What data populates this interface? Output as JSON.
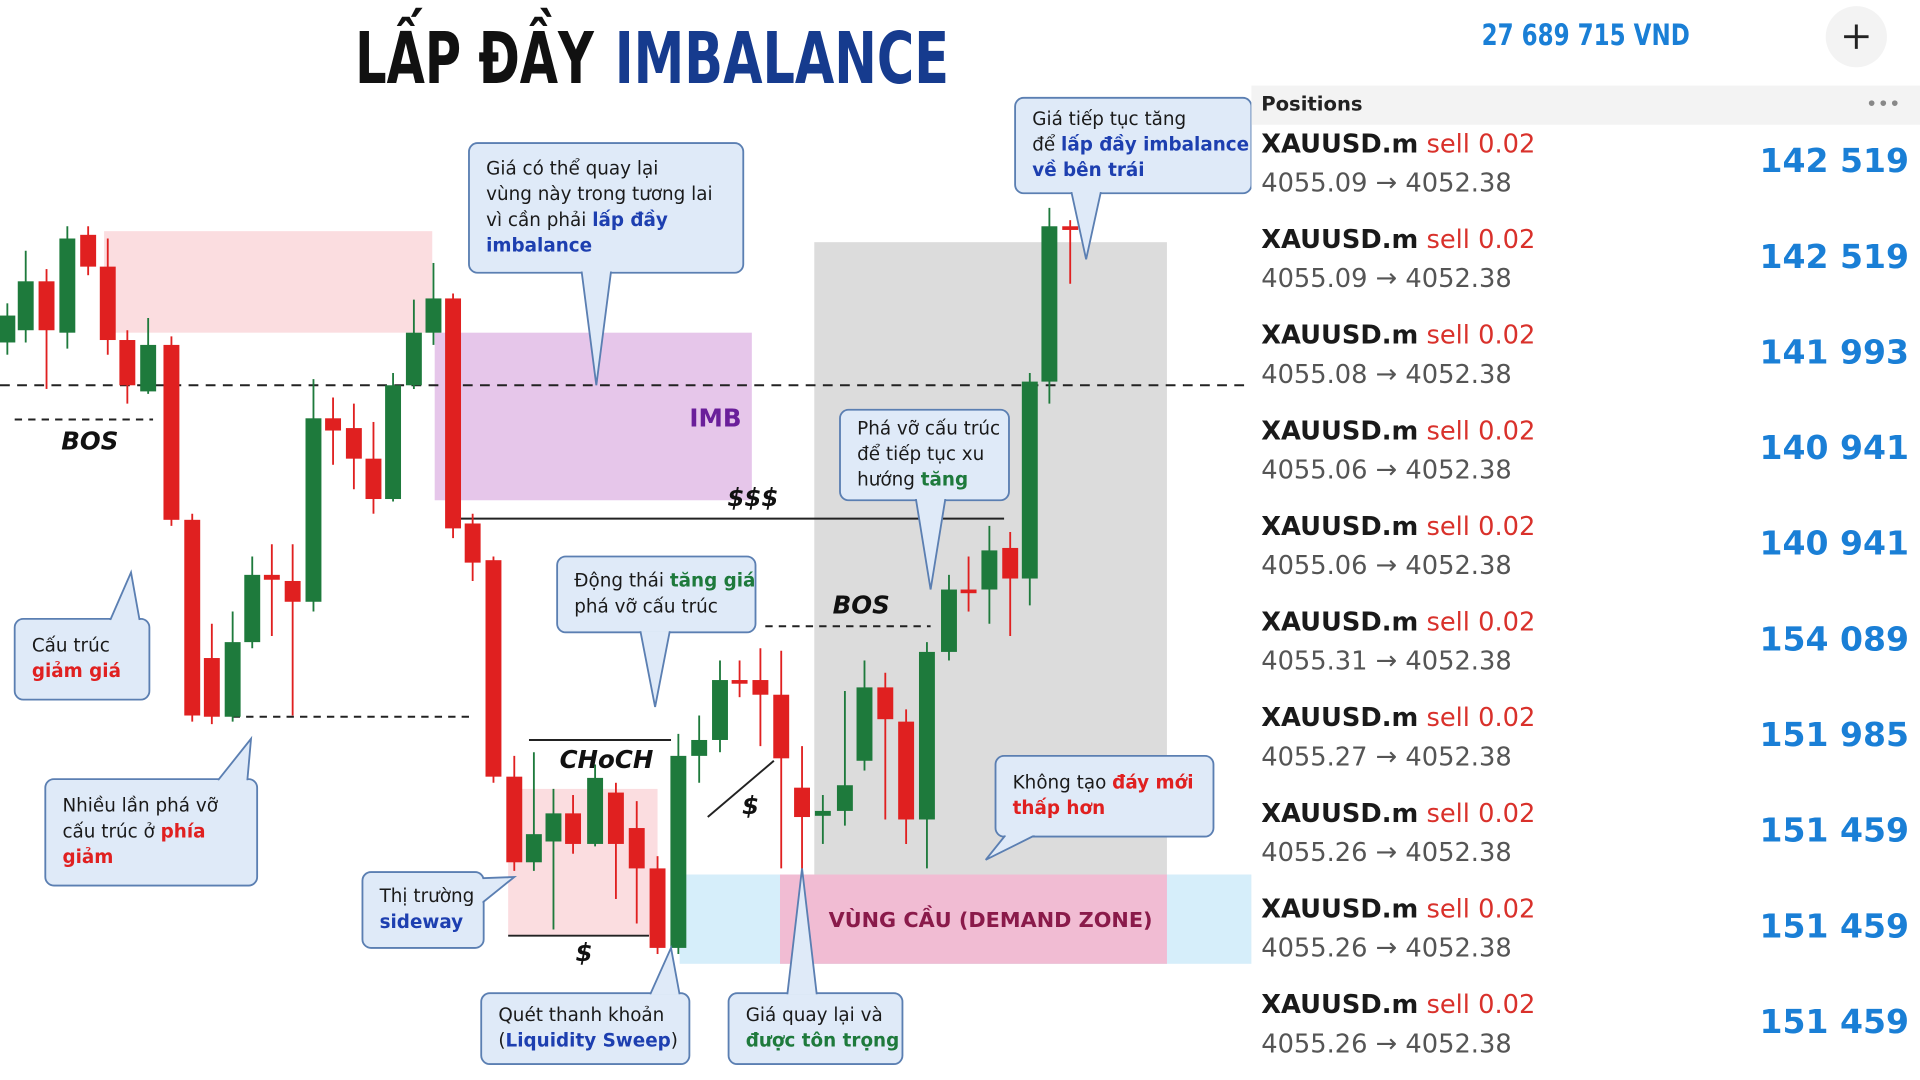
{
  "title": {
    "part1": "LẤP ĐẦY",
    "part2": "IMBALANCE"
  },
  "chart_labels": {
    "bos_left": "BOS",
    "bos_right": "BOS",
    "imb": "IMB",
    "liquidity_high": "$$$",
    "choch": "CHoCH",
    "liquidity_low": "$",
    "liquidity_mid": "$",
    "demand_zone": "VÙNG CẦU (DEMAND ZONE)"
  },
  "callouts": [
    {
      "lines": [
        [
          {
            "t": "Giá có thể quay lại"
          }
        ],
        [
          {
            "t": "vùng này trong tương lai"
          }
        ],
        [
          {
            "t": "vì cần phải "
          },
          {
            "t": "lấp đầy",
            "c": "#1d3fb0"
          }
        ],
        [
          {
            "t": "imbalance",
            "c": "#1d3fb0"
          }
        ]
      ]
    },
    {
      "lines": [
        [
          {
            "t": "Giá tiếp tục tăng"
          }
        ],
        [
          {
            "t": "để "
          },
          {
            "t": "lấp đầy imbalance",
            "c": "#1d3fb0"
          }
        ],
        [
          {
            "t": "về bên trái",
            "c": "#1d3fb0"
          }
        ]
      ]
    },
    {
      "lines": [
        [
          {
            "t": "Cấu trúc"
          }
        ],
        [
          {
            "t": "giảm giá",
            "c": "#e02020"
          }
        ]
      ]
    },
    {
      "lines": [
        [
          {
            "t": "Nhiều lần phá vỡ"
          }
        ],
        [
          {
            "t": "cấu trúc ở "
          },
          {
            "t": "phía",
            "c": "#e02020"
          }
        ],
        [
          {
            "t": "giảm",
            "c": "#e02020"
          }
        ]
      ]
    },
    {
      "lines": [
        [
          {
            "t": "Động thái "
          },
          {
            "t": "tăng giá",
            "c": "#1e7a3c"
          }
        ],
        [
          {
            "t": "phá vỡ cấu trúc"
          }
        ]
      ]
    },
    {
      "lines": [
        [
          {
            "t": "Phá vỡ cấu trúc"
          }
        ],
        [
          {
            "t": "để tiếp tục xu"
          }
        ],
        [
          {
            "t": "hướng "
          },
          {
            "t": "tăng",
            "c": "#1e7a3c"
          }
        ]
      ]
    },
    {
      "lines": [
        [
          {
            "t": "Không tạo "
          },
          {
            "t": "đáy mới",
            "c": "#e02020"
          }
        ],
        [
          {
            "t": "thấp hơn",
            "c": "#e02020"
          }
        ]
      ]
    },
    {
      "lines": [
        [
          {
            "t": "Thị trường"
          }
        ],
        [
          {
            "t": "sideway",
            "c": "#1d3fb0"
          }
        ]
      ]
    },
    {
      "lines": [
        [
          {
            "t": "Quét thanh khoản"
          }
        ],
        [
          {
            "t": "("
          },
          {
            "t": "Liquidity Sweep",
            "c": "#1d3fb0"
          },
          {
            "t": ")"
          }
        ]
      ]
    },
    {
      "lines": [
        [
          {
            "t": "Giá quay lại và"
          }
        ],
        [
          {
            "t": "được tôn trọng",
            "c": "#1e7a3c"
          }
        ]
      ]
    }
  ],
  "app": {
    "balance": "27 689 715 VND",
    "header": "Positions",
    "positions": [
      {
        "symbol": "XAUUSD.m",
        "side": "sell",
        "volume": 0.02,
        "open": 4055.09,
        "close": 4052.38,
        "profit": "142 519"
      },
      {
        "symbol": "XAUUSD.m",
        "side": "sell",
        "volume": 0.02,
        "open": 4055.09,
        "close": 4052.38,
        "profit": "142 519"
      },
      {
        "symbol": "XAUUSD.m",
        "side": "sell",
        "volume": 0.02,
        "open": 4055.08,
        "close": 4052.38,
        "profit": "141 993"
      },
      {
        "symbol": "XAUUSD.m",
        "side": "sell",
        "volume": 0.02,
        "open": 4055.06,
        "close": 4052.38,
        "profit": "140 941"
      },
      {
        "symbol": "XAUUSD.m",
        "side": "sell",
        "volume": 0.02,
        "open": 4055.06,
        "close": 4052.38,
        "profit": "140 941"
      },
      {
        "symbol": "XAUUSD.m",
        "side": "sell",
        "volume": 0.02,
        "open": 4055.31,
        "close": 4052.38,
        "profit": "154 089"
      },
      {
        "symbol": "XAUUSD.m",
        "side": "sell",
        "volume": 0.02,
        "open": 4055.27,
        "close": 4052.38,
        "profit": "151 985"
      },
      {
        "symbol": "XAUUSD.m",
        "side": "sell",
        "volume": 0.02,
        "open": 4055.26,
        "close": 4052.38,
        "profit": "151 459"
      },
      {
        "symbol": "XAUUSD.m",
        "side": "sell",
        "volume": 0.02,
        "open": 4055.26,
        "close": 4052.38,
        "profit": "151 459"
      },
      {
        "symbol": "XAUUSD.m",
        "side": "sell",
        "volume": 0.02,
        "open": 4055.26,
        "close": 4052.38,
        "profit": "151 459"
      }
    ]
  }
}
